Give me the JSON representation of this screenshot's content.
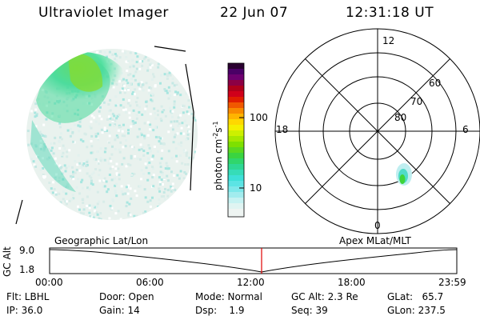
{
  "header": {
    "instrument": "Ultraviolet Imager",
    "date": "22 Jun 07",
    "time": "12:31:18 UT"
  },
  "colorbar": {
    "label": "photon cm",
    "label_sup1": "-2",
    "label_mid": "s",
    "label_sup2": "-1",
    "ticks": [
      "100",
      "10"
    ]
  },
  "polar_plot": {
    "mlt_labels": {
      "top": "12",
      "left": "18",
      "right": "6",
      "bottom": "0"
    },
    "lat_labels": [
      "60",
      "70",
      "80"
    ]
  },
  "altitude_plot": {
    "ylabel": "GC Alt",
    "ytick_top": "9.0",
    "ytick_bottom": "1.8",
    "left_title": "Geographic Lat/Lon",
    "right_title": "Apex  MLat/MLT",
    "xticks": [
      "00:00",
      "06:00",
      "12:00",
      "18:00",
      "23:59"
    ],
    "marker_color": "#e00000",
    "marker_time_hours": 12.52
  },
  "status": {
    "flt": "Flt: LBHL",
    "ip": "IP: 36.0",
    "door": "Door: Open",
    "gain": "Gain: 14",
    "mode": "Mode: Normal",
    "dsp": "Dsp:    1.9",
    "gcalt": "GC Alt: 2.3 Re",
    "seq": "Seq: 39",
    "glat": "GLat:   65.7",
    "glon": "GLon: 237.5"
  }
}
